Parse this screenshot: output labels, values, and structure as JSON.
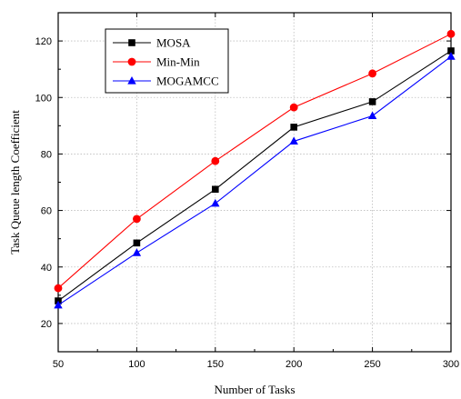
{
  "chart_data": {
    "type": "line",
    "title": "",
    "xlabel": "Number of Tasks",
    "ylabel": "Task Queue length Coefficient",
    "x": [
      50,
      100,
      150,
      200,
      250,
      300
    ],
    "xlim": [
      50,
      300
    ],
    "ylim": [
      10,
      130
    ],
    "x_ticks": [
      50,
      100,
      150,
      200,
      250,
      300
    ],
    "y_ticks": [
      20,
      40,
      60,
      80,
      100,
      120
    ],
    "grid": true,
    "legend_position": "top-left",
    "series": [
      {
        "name": "MOSA",
        "color": "#000000",
        "marker": "square",
        "values": [
          28,
          48.5,
          67.5,
          89.5,
          98.5,
          116.5
        ]
      },
      {
        "name": "Min-Min",
        "color": "#ff0000",
        "marker": "circle",
        "values": [
          32.5,
          57,
          77.5,
          96.5,
          108.5,
          122.5
        ]
      },
      {
        "name": "MOGAMCC",
        "color": "#0000ff",
        "marker": "triangle",
        "values": [
          26.5,
          45,
          62.5,
          84.5,
          93.5,
          114.5
        ]
      }
    ]
  }
}
